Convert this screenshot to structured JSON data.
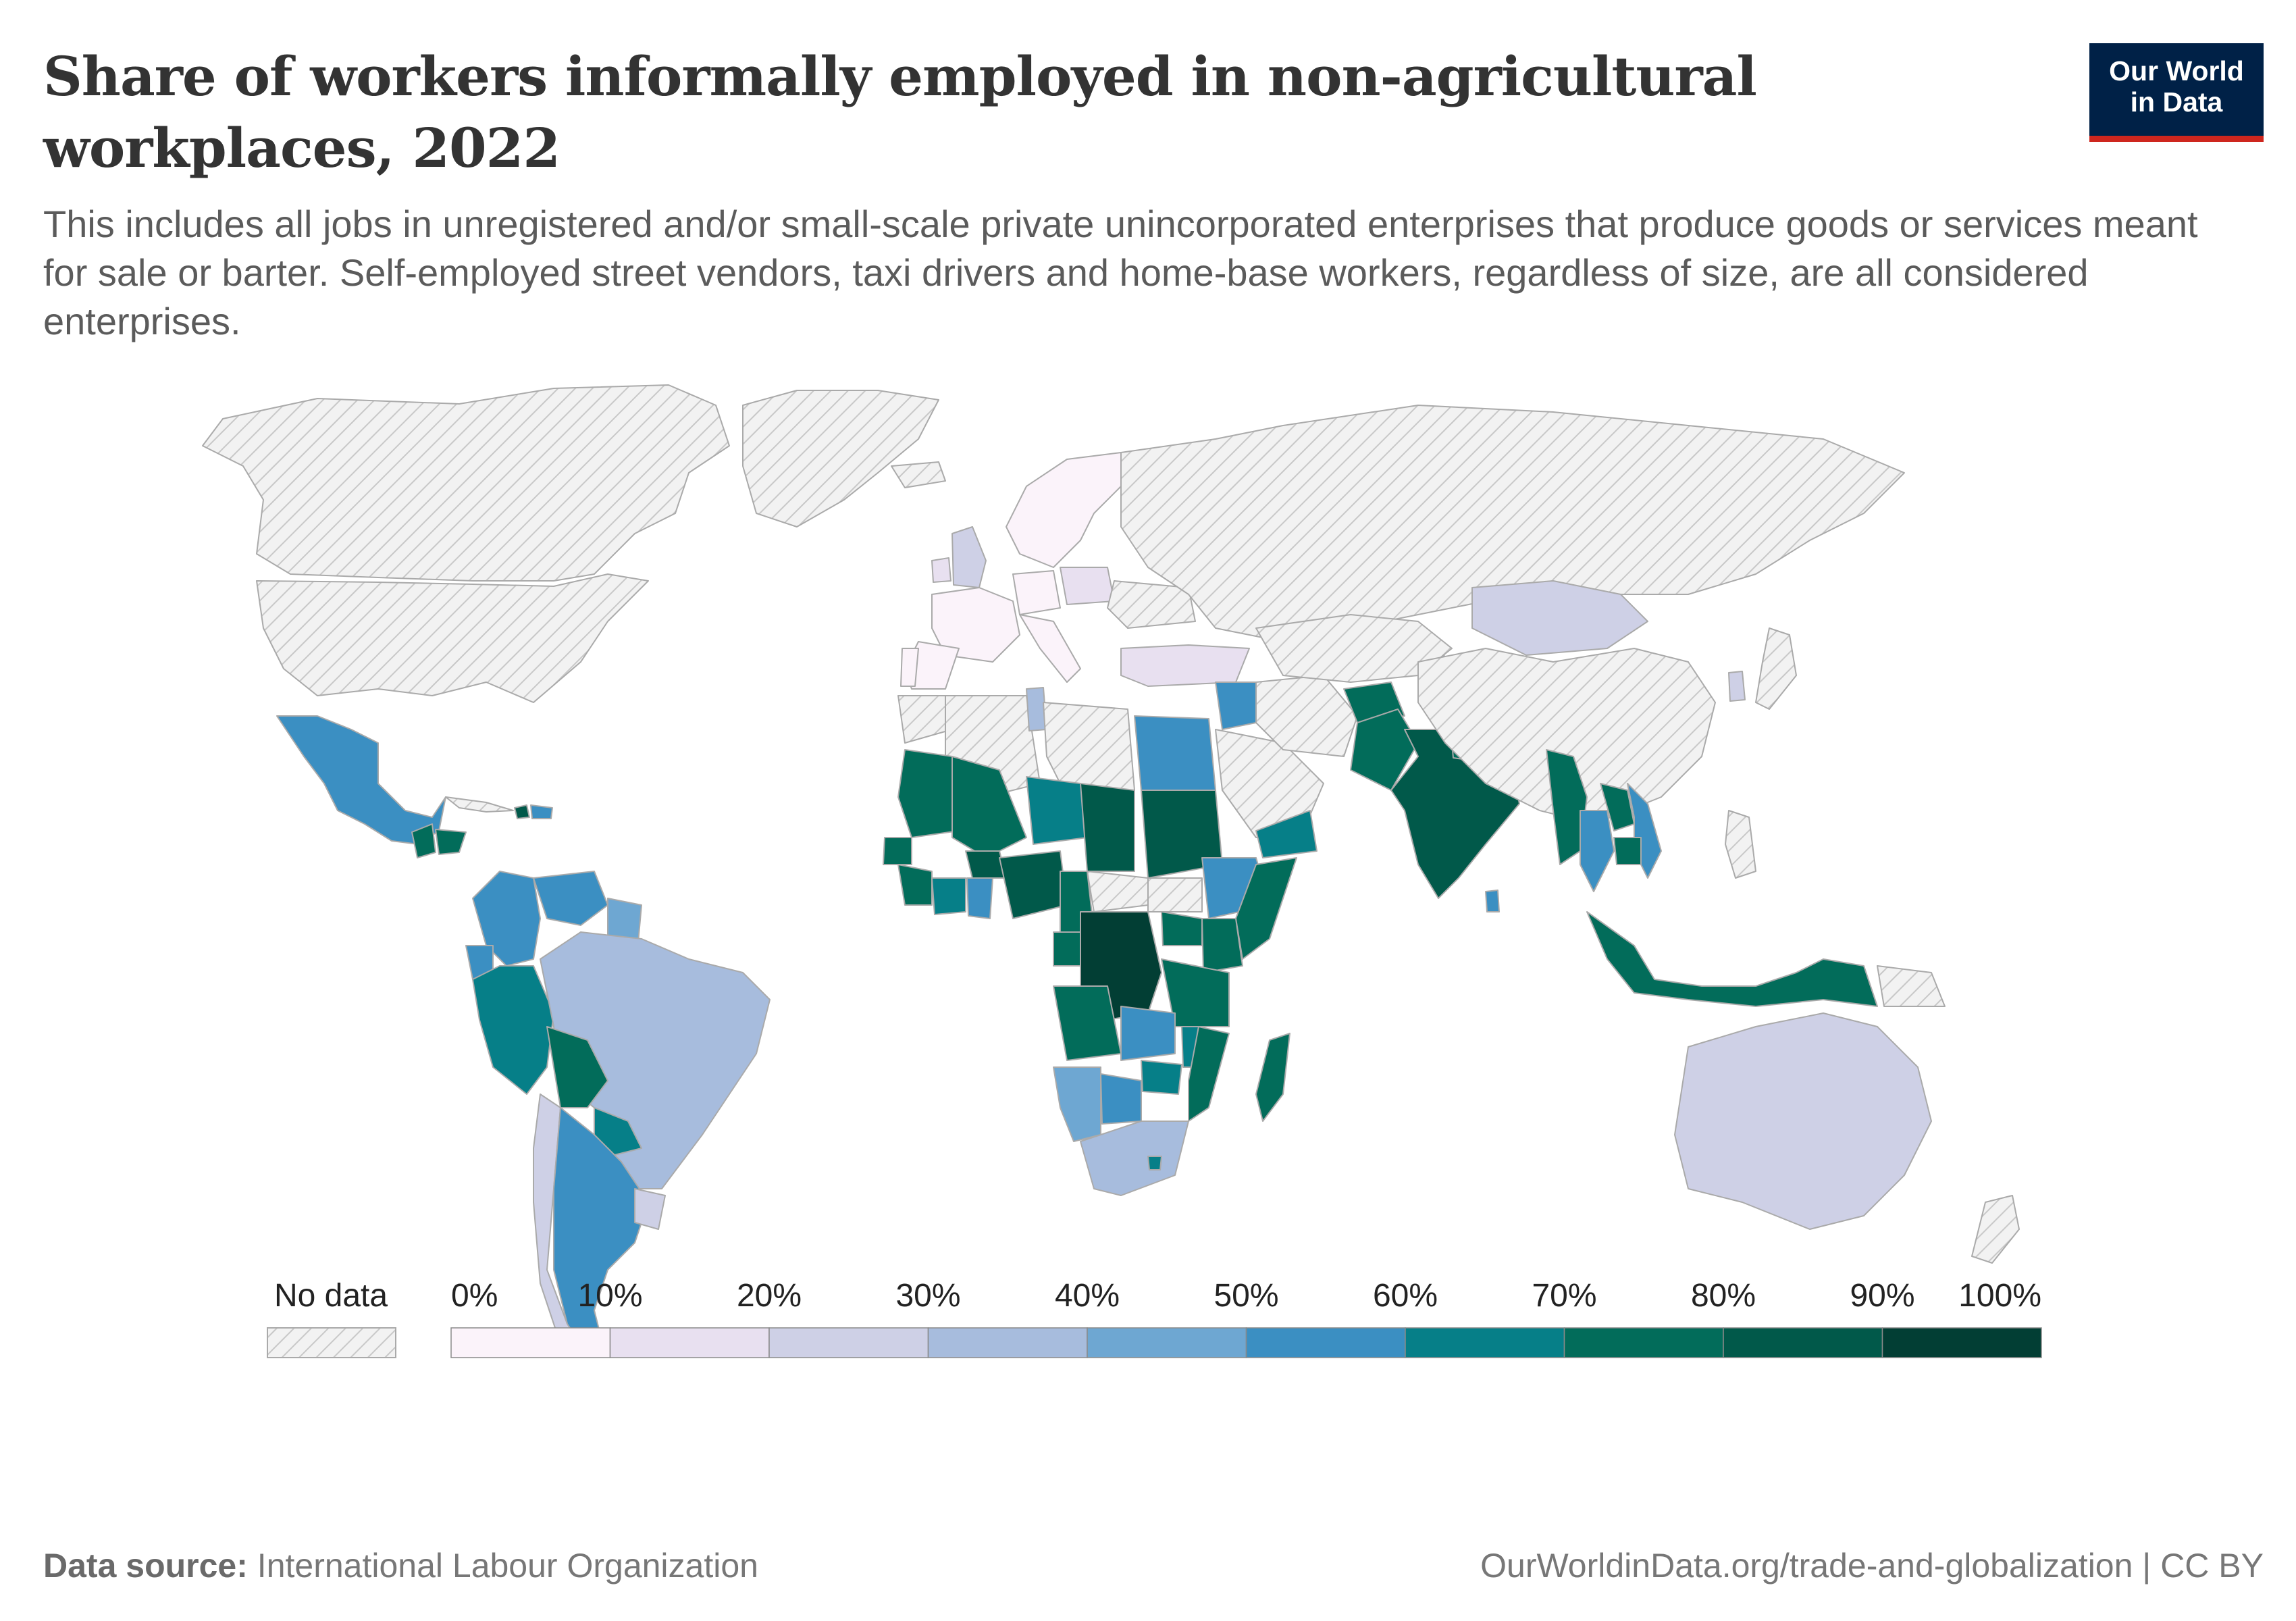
{
  "header": {
    "title": "Share of workers informally employed in non-agricultural workplaces, 2022",
    "subtitle": "This includes all jobs in unregistered and/or small-scale private unincorporated enterprises that produce goods or services meant for sale or barter. Self-employed street vendors, taxi drivers and home-base workers, regardless of size, are all considered enterprises."
  },
  "logo": {
    "line1": "Our World",
    "line2": "in Data"
  },
  "legend": {
    "no_data_label": "No data",
    "bins": [
      {
        "label": "0%",
        "color": "#fbf3fa"
      },
      {
        "label": "10%",
        "color": "#e8e0f0"
      },
      {
        "label": "20%",
        "color": "#ced0e6"
      },
      {
        "label": "30%",
        "color": "#a7bcdd"
      },
      {
        "label": "40%",
        "color": "#6ea7d2"
      },
      {
        "label": "50%",
        "color": "#3b8fc2"
      },
      {
        "label": "60%",
        "color": "#067f88"
      },
      {
        "label": "70%",
        "color": "#026c5a"
      },
      {
        "label": "80%",
        "color": "#01594a"
      },
      {
        "label": "90%",
        "color": "#023e34"
      }
    ],
    "end_label": "100%"
  },
  "colors": {
    "no_data_fill": "#f2f2f2",
    "no_data_hatch": "#c8c8c8",
    "border": "#aaaaaa"
  },
  "footer": {
    "source_label": "Data source:",
    "source": "International Labour Organization",
    "url_license": "OurWorldinData.org/trade-and-globalization | CC BY"
  },
  "countries": [
    {
      "name": "Canada",
      "bin": null
    },
    {
      "name": "United States",
      "bin": null
    },
    {
      "name": "Greenland",
      "bin": null
    },
    {
      "name": "Mexico",
      "bin": 5
    },
    {
      "name": "Guatemala",
      "bin": 7
    },
    {
      "name": "Honduras",
      "bin": 7
    },
    {
      "name": "Cuba",
      "bin": null
    },
    {
      "name": "Haiti",
      "bin": 8
    },
    {
      "name": "Dominican Republic",
      "bin": 5
    },
    {
      "name": "Colombia",
      "bin": 5
    },
    {
      "name": "Venezuela",
      "bin": 5
    },
    {
      "name": "Guyana",
      "bin": 4
    },
    {
      "name": "Ecuador",
      "bin": 5
    },
    {
      "name": "Peru",
      "bin": 6
    },
    {
      "name": "Brazil",
      "bin": 3
    },
    {
      "name": "Bolivia",
      "bin": 7
    },
    {
      "name": "Paraguay",
      "bin": 6
    },
    {
      "name": "Chile",
      "bin": 2
    },
    {
      "name": "Argentina",
      "bin": 5
    },
    {
      "name": "Uruguay",
      "bin": 2
    },
    {
      "name": "Iceland",
      "bin": null
    },
    {
      "name": "United Kingdom",
      "bin": 2
    },
    {
      "name": "Ireland",
      "bin": 1
    },
    {
      "name": "France",
      "bin": 0
    },
    {
      "name": "Spain",
      "bin": 0
    },
    {
      "name": "Portugal",
      "bin": 0
    },
    {
      "name": "Germany",
      "bin": 0
    },
    {
      "name": "Italy",
      "bin": 0
    },
    {
      "name": "Scandinavia",
      "bin": 0
    },
    {
      "name": "Poland",
      "bin": 1
    },
    {
      "name": "Ukraine",
      "bin": null
    },
    {
      "name": "Russia",
      "bin": null
    },
    {
      "name": "Turkey",
      "bin": 1
    },
    {
      "name": "Morocco",
      "bin": null
    },
    {
      "name": "Algeria",
      "bin": null
    },
    {
      "name": "Tunisia",
      "bin": 3
    },
    {
      "name": "Libya",
      "bin": null
    },
    {
      "name": "Egypt",
      "bin": 5
    },
    {
      "name": "Mauritania",
      "bin": 7
    },
    {
      "name": "Mali",
      "bin": 7
    },
    {
      "name": "Niger",
      "bin": 6
    },
    {
      "name": "Chad",
      "bin": 8
    },
    {
      "name": "Sudan",
      "bin": 8
    },
    {
      "name": "Senegal",
      "bin": 7
    },
    {
      "name": "Guinea",
      "bin": 7
    },
    {
      "name": "Ivory Coast",
      "bin": 6
    },
    {
      "name": "Ghana",
      "bin": 5
    },
    {
      "name": "Burkina Faso",
      "bin": 8
    },
    {
      "name": "Nigeria",
      "bin": 8
    },
    {
      "name": "Cameroon",
      "bin": 7
    },
    {
      "name": "Central African Republic",
      "bin": null
    },
    {
      "name": "South Sudan",
      "bin": null
    },
    {
      "name": "Ethiopia",
      "bin": 5
    },
    {
      "name": "Somalia",
      "bin": 7
    },
    {
      "name": "Kenya",
      "bin": 7
    },
    {
      "name": "Uganda",
      "bin": 7
    },
    {
      "name": "DR Congo",
      "bin": 9
    },
    {
      "name": "Gabon",
      "bin": 7
    },
    {
      "name": "Angola",
      "bin": 7
    },
    {
      "name": "Tanzania",
      "bin": 7
    },
    {
      "name": "Zambia",
      "bin": 5
    },
    {
      "name": "Malawi",
      "bin": 6
    },
    {
      "name": "Mozambique",
      "bin": 7
    },
    {
      "name": "Zimbabwe",
      "bin": 6
    },
    {
      "name": "Namibia",
      "bin": 4
    },
    {
      "name": "Botswana",
      "bin": 5
    },
    {
      "name": "South Africa",
      "bin": 3
    },
    {
      "name": "Lesotho",
      "bin": 6
    },
    {
      "name": "Madagascar",
      "bin": 7
    },
    {
      "name": "Saudi Arabia",
      "bin": null
    },
    {
      "name": "Yemen",
      "bin": 6
    },
    {
      "name": "Iraq",
      "bin": 5
    },
    {
      "name": "Iran",
      "bin": null
    },
    {
      "name": "Kyrgyzstan",
      "bin": 5
    },
    {
      "name": "Kazakhstan",
      "bin": null
    },
    {
      "name": "Afghanistan",
      "bin": 7
    },
    {
      "name": "Pakistan",
      "bin": 7
    },
    {
      "name": "India",
      "bin": 8
    },
    {
      "name": "Nepal",
      "bin": 7
    },
    {
      "name": "Bangladesh",
      "bin": 9
    },
    {
      "name": "Sri Lanka",
      "bin": 5
    },
    {
      "name": "Mongolia",
      "bin": 2
    },
    {
      "name": "China",
      "bin": null
    },
    {
      "name": "South Korea",
      "bin": 2
    },
    {
      "name": "Japan",
      "bin": null
    },
    {
      "name": "Myanmar",
      "bin": 7
    },
    {
      "name": "Thailand",
      "bin": 5
    },
    {
      "name": "Laos",
      "bin": 7
    },
    {
      "name": "Vietnam",
      "bin": 5
    },
    {
      "name": "Cambodia",
      "bin": 7
    },
    {
      "name": "Philippines",
      "bin": null
    },
    {
      "name": "Indonesia",
      "bin": 7
    },
    {
      "name": "Papua New Guinea",
      "bin": null
    },
    {
      "name": "Australia",
      "bin": 2
    },
    {
      "name": "New Zealand",
      "bin": null
    }
  ]
}
